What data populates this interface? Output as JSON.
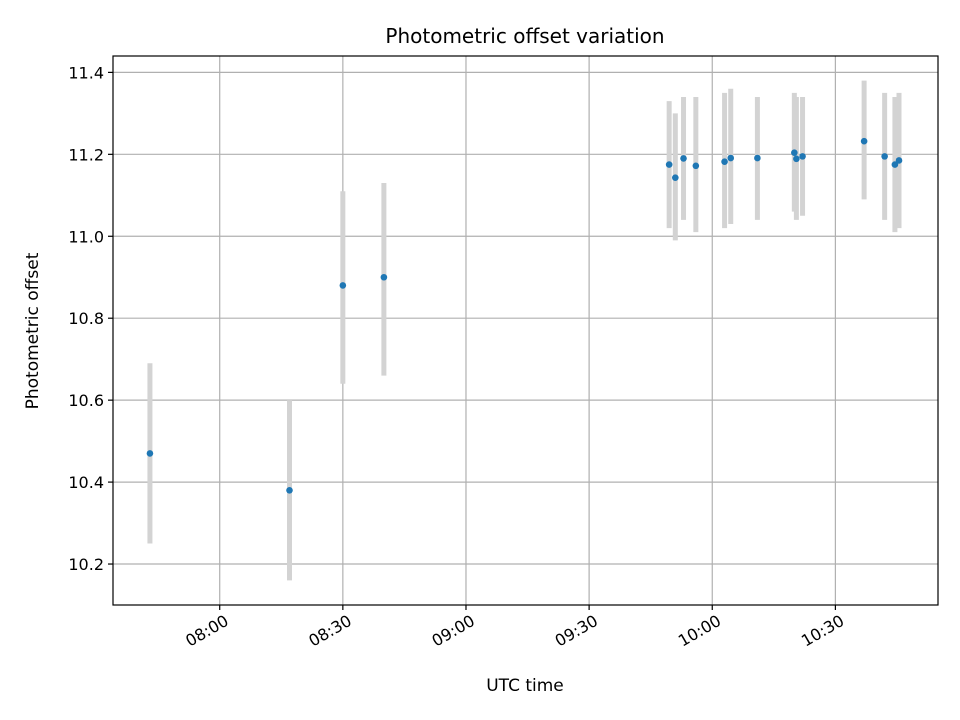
{
  "chart_data": {
    "type": "scatter",
    "title": "Photometric offset variation",
    "xlabel": "UTC time",
    "ylabel": "Photometric offset",
    "x_ticks": [
      "08:00",
      "08:30",
      "09:00",
      "09:30",
      "10:00",
      "10:30"
    ],
    "y_ticks": [
      "10.2",
      "10.4",
      "10.6",
      "10.8",
      "11.0",
      "11.2",
      "11.4"
    ],
    "xlim": [
      "07:34",
      "10:55"
    ],
    "ylim": [
      10.1,
      11.44
    ],
    "grid": true,
    "marker_color": "#1f77b4",
    "errorbar_color": "#d3d3d3",
    "points": [
      {
        "x": "07:43",
        "y": 10.47,
        "err_low": 10.25,
        "err_high": 10.69
      },
      {
        "x": "08:17",
        "y": 10.38,
        "err_low": 10.16,
        "err_high": 10.6
      },
      {
        "x": "08:30",
        "y": 10.88,
        "err_low": 10.64,
        "err_high": 11.11
      },
      {
        "x": "08:40",
        "y": 10.9,
        "err_low": 10.66,
        "err_high": 11.13
      },
      {
        "x": "09:49:30",
        "y": 11.175,
        "err_low": 11.02,
        "err_high": 11.33
      },
      {
        "x": "09:51",
        "y": 11.143,
        "err_low": 10.99,
        "err_high": 11.3
      },
      {
        "x": "09:53",
        "y": 11.19,
        "err_low": 11.04,
        "err_high": 11.34
      },
      {
        "x": "09:56",
        "y": 11.172,
        "err_low": 11.01,
        "err_high": 11.34
      },
      {
        "x": "10:03",
        "y": 11.182,
        "err_low": 11.02,
        "err_high": 11.35
      },
      {
        "x": "10:04:30",
        "y": 11.191,
        "err_low": 11.03,
        "err_high": 11.36
      },
      {
        "x": "10:11",
        "y": 11.191,
        "err_low": 11.04,
        "err_high": 11.34
      },
      {
        "x": "10:20",
        "y": 11.204,
        "err_low": 11.06,
        "err_high": 11.35
      },
      {
        "x": "10:20:30",
        "y": 11.189,
        "err_low": 11.04,
        "err_high": 11.34
      },
      {
        "x": "10:22",
        "y": 11.195,
        "err_low": 11.05,
        "err_high": 11.34
      },
      {
        "x": "10:37",
        "y": 11.232,
        "err_low": 11.09,
        "err_high": 11.38
      },
      {
        "x": "10:42",
        "y": 11.195,
        "err_low": 11.04,
        "err_high": 11.35
      },
      {
        "x": "10:44:30",
        "y": 11.175,
        "err_low": 11.01,
        "err_high": 11.34
      },
      {
        "x": "10:45:30",
        "y": 11.185,
        "err_low": 11.02,
        "err_high": 11.35
      }
    ]
  }
}
